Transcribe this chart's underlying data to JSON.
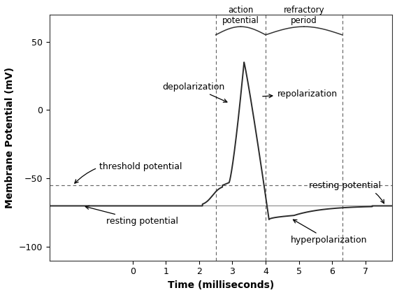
{
  "title": "",
  "xlabel": "Time (milliseconds)",
  "ylabel": "Membrane Potential (mV)",
  "xlim": [
    -2.5,
    7.8
  ],
  "ylim": [
    -110,
    70
  ],
  "xticks": [
    0,
    1,
    2,
    3,
    4,
    5,
    6,
    7
  ],
  "yticks": [
    -100,
    -50,
    0,
    50
  ],
  "resting_potential": -70,
  "threshold_potential": -55,
  "peak_potential": 35,
  "hyperpolarization_val": -80,
  "dashed_vlines": [
    2.5,
    4.0,
    6.3
  ],
  "dashed_hline_threshold": -55,
  "dashed_hline_resting": -70,
  "background_color": "#ffffff",
  "line_color": "#2a2a2a",
  "annotation_fontsize": 9,
  "label_fontsize": 10,
  "tick_fontsize": 9
}
